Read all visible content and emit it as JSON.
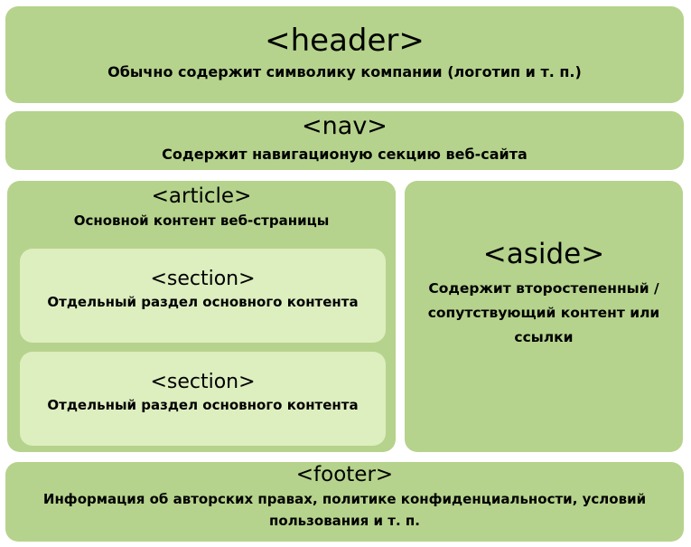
{
  "header": {
    "tag": "<header>",
    "description": "Обычно содержит символику компании (логотип и т. п.)"
  },
  "nav": {
    "tag": "<nav>",
    "description": "Содержит навигационую секцию веб-сайта"
  },
  "article": {
    "tag": "<article>",
    "description": "Основной контент веб-страницы",
    "sections": [
      {
        "tag": "<section>",
        "description": "Отдельный раздел основного контента"
      },
      {
        "tag": "<section>",
        "description": "Отдельный раздел основного контента"
      }
    ]
  },
  "aside": {
    "tag": "<aside>",
    "description": "Содержит второстепенный / сопутствующий контент или ссылки"
  },
  "footer": {
    "tag": "<footer>",
    "description": "Информация об авторских правах, политике конфиденциальности, условий пользования и т. п."
  },
  "colors": {
    "outer_box": "#b5d38c",
    "inner_box": "#ddeebf"
  }
}
